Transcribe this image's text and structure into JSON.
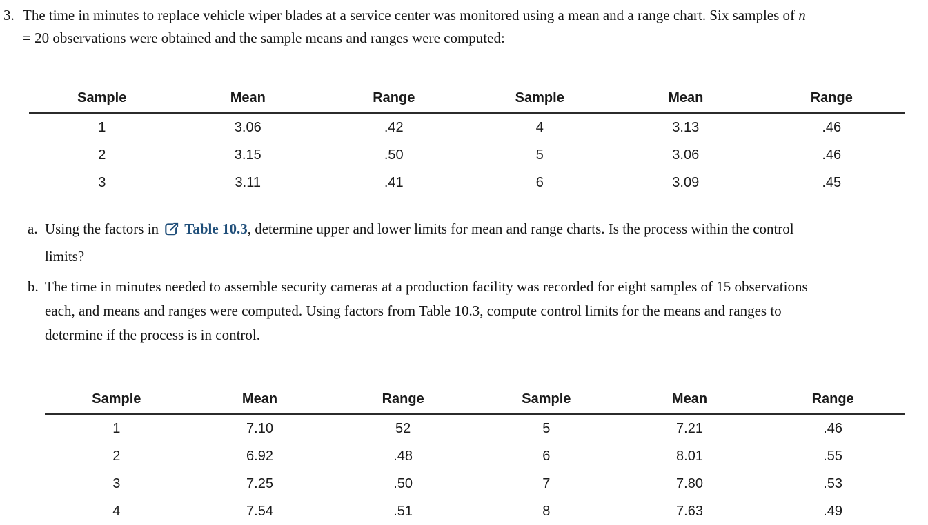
{
  "page": {
    "background": "#ffffff",
    "text_color": "#161616",
    "link_color": "#1f4e79"
  },
  "problem": {
    "number": "3.",
    "intro": {
      "line1_text": "The time in minutes to replace vehicle wiper blades at a service center was monitored using a mean and a range chart. Six samples of ",
      "line1_italic": "n",
      "line2_text": "= 20 observations were obtained and the sample means and ranges were computed:"
    },
    "item_a": {
      "label": "a.",
      "text_before_link": "Using the factors in ",
      "link_icon": "external-link-icon",
      "link_text": "Table 10.3",
      "line1_after_link": ", determine upper and lower limits for mean and range charts. Is the process within the control",
      "line2": "limits?"
    },
    "item_b": {
      "label": "b.",
      "lines": [
        "The time in minutes needed to assemble security cameras at a production facility was recorded for eight samples of 15 observations",
        "each, and means and ranges were computed. Using factors from Table 10.3, compute control limits for the means and ranges to",
        "determine if the process is in control."
      ]
    }
  },
  "tables": {
    "wiper_blades": {
      "headers": [
        "Sample",
        "Mean",
        "Range",
        "Sample",
        "Mean",
        "Range"
      ],
      "rows": [
        [
          "1",
          "3.06",
          ".42",
          "4",
          "3.13",
          ".46"
        ],
        [
          "2",
          "3.15",
          ".50",
          "5",
          "3.06",
          ".46"
        ],
        [
          "3",
          "3.11",
          ".41",
          "6",
          "3.09",
          ".45"
        ]
      ]
    },
    "security_cameras": {
      "headers": [
        "Sample",
        "Mean",
        "Range",
        "Sample",
        "Mean",
        "Range"
      ],
      "rows": [
        [
          "1",
          "7.10",
          "52",
          "5",
          "7.21",
          ".46"
        ],
        [
          "2",
          "6.92",
          ".48",
          "6",
          "8.01",
          ".55"
        ],
        [
          "3",
          "7.25",
          ".50",
          "7",
          "7.80",
          ".53"
        ],
        [
          "4",
          "7.54",
          ".51",
          "8",
          "7.63",
          ".49"
        ]
      ]
    }
  }
}
